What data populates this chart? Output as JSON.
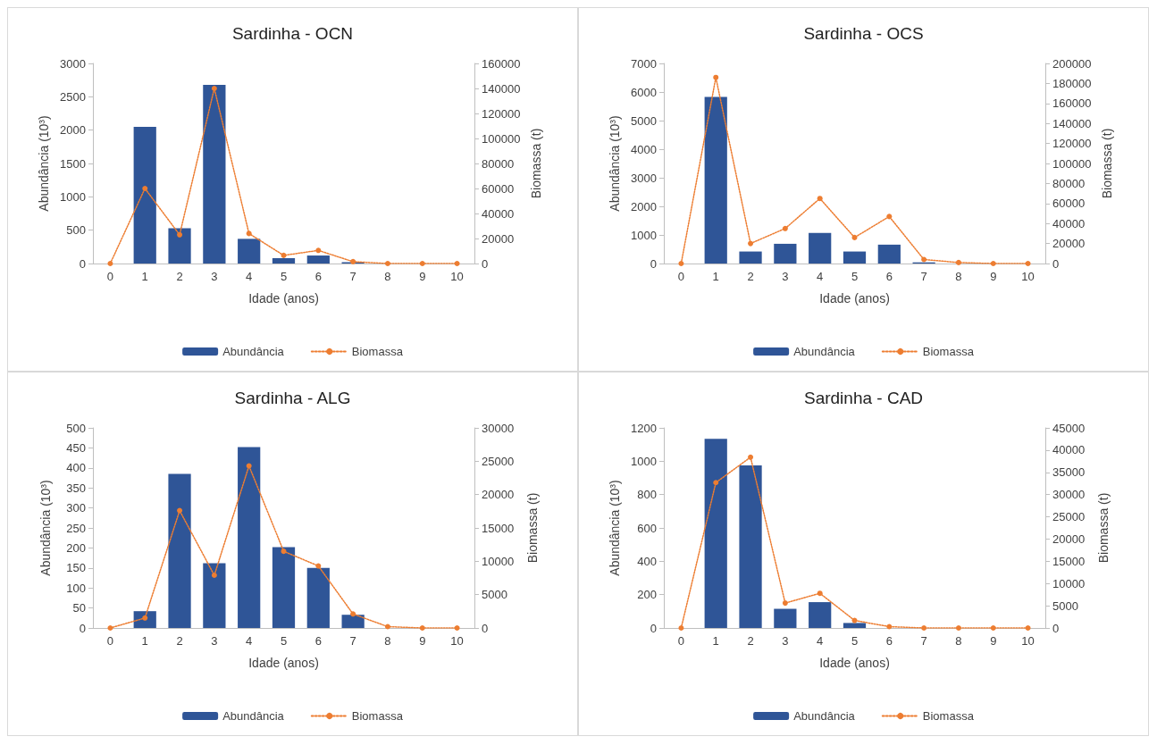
{
  "chart_data": [
    {
      "type": "bar",
      "title": "Sardinha - OCN",
      "xlabel": "Idade (anos)",
      "ylabel": "Abundância (10³)",
      "y2label": "Biomassa (t)",
      "categories": [
        "0",
        "1",
        "2",
        "3",
        "4",
        "5",
        "6",
        "7",
        "8",
        "9",
        "10"
      ],
      "series": [
        {
          "name": "Abundância",
          "color": "#2f5597",
          "values": [
            0,
            2050,
            530,
            2680,
            370,
            80,
            120,
            20,
            0,
            0,
            0
          ]
        },
        {
          "name": "Biomassa",
          "type": "line",
          "axis": "y2",
          "color": "#ed7d31",
          "values": [
            0,
            60000,
            23000,
            140000,
            24000,
            6500,
            10500,
            1500,
            0,
            0,
            0
          ]
        }
      ],
      "ylim": [
        0,
        3000
      ],
      "yticks": [
        0,
        500,
        1000,
        1500,
        2000,
        2500,
        3000
      ],
      "y2lim": [
        0,
        160000
      ],
      "y2ticks": [
        0,
        20000,
        40000,
        60000,
        80000,
        100000,
        120000,
        140000,
        160000
      ],
      "legend": "bottom",
      "marker": "circle",
      "line_style": "dotted"
    },
    {
      "type": "bar",
      "title": "Sardinha - OCS",
      "xlabel": "Idade (anos)",
      "ylabel": "Abundância (10³)",
      "y2label": "Biomassa (t)",
      "categories": [
        "0",
        "1",
        "2",
        "3",
        "4",
        "5",
        "6",
        "7",
        "8",
        "9",
        "10"
      ],
      "series": [
        {
          "name": "Abundância",
          "color": "#2f5597",
          "values": [
            0,
            5830,
            420,
            690,
            1070,
            420,
            660,
            40,
            0,
            0,
            0
          ]
        },
        {
          "name": "Biomassa",
          "type": "line",
          "axis": "y2",
          "color": "#ed7d31",
          "values": [
            0,
            186000,
            20000,
            35000,
            65000,
            26000,
            47000,
            4000,
            1000,
            0,
            0
          ]
        }
      ],
      "ylim": [
        0,
        7000
      ],
      "yticks": [
        0,
        1000,
        2000,
        3000,
        4000,
        5000,
        6000,
        7000
      ],
      "y2lim": [
        0,
        200000
      ],
      "y2ticks": [
        0,
        20000,
        40000,
        60000,
        80000,
        100000,
        120000,
        140000,
        160000,
        180000,
        200000
      ],
      "legend": "bottom",
      "marker": "circle",
      "line_style": "dotted"
    },
    {
      "type": "bar",
      "title": "Sardinha - ALG",
      "xlabel": "Idade (anos)",
      "ylabel": "Abundância (10³)",
      "y2label": "Biomassa (t)",
      "categories": [
        "0",
        "1",
        "2",
        "3",
        "4",
        "5",
        "6",
        "7",
        "8",
        "9",
        "10"
      ],
      "series": [
        {
          "name": "Abundância",
          "color": "#2f5597",
          "values": [
            0,
            42,
            385,
            162,
            452,
            202,
            150,
            33,
            0,
            0,
            0
          ]
        },
        {
          "name": "Biomassa",
          "type": "line",
          "axis": "y2",
          "color": "#ed7d31",
          "values": [
            0,
            1500,
            17600,
            7900,
            24300,
            11500,
            9300,
            2100,
            200,
            0,
            0
          ]
        }
      ],
      "ylim": [
        0,
        500
      ],
      "yticks": [
        0,
        50,
        100,
        150,
        200,
        250,
        300,
        350,
        400,
        450,
        500
      ],
      "y2lim": [
        0,
        30000
      ],
      "y2ticks": [
        0,
        5000,
        10000,
        15000,
        20000,
        25000,
        30000
      ],
      "legend": "bottom",
      "marker": "circle",
      "line_style": "dotted"
    },
    {
      "type": "bar",
      "title": "Sardinha - CAD",
      "xlabel": "Idade (anos)",
      "ylabel": "Abundância (10³)",
      "y2label": "Biomassa (t)",
      "categories": [
        "0",
        "1",
        "2",
        "3",
        "4",
        "5",
        "6",
        "7",
        "8",
        "9",
        "10"
      ],
      "series": [
        {
          "name": "Abundância",
          "color": "#2f5597",
          "values": [
            0,
            1135,
            975,
            115,
            155,
            30,
            0,
            0,
            0,
            0,
            0
          ]
        },
        {
          "name": "Biomassa",
          "type": "line",
          "axis": "y2",
          "color": "#ed7d31",
          "values": [
            0,
            32700,
            38400,
            5600,
            7800,
            1700,
            300,
            0,
            0,
            0,
            0
          ]
        }
      ],
      "ylim": [
        0,
        1200
      ],
      "yticks": [
        0,
        200,
        400,
        600,
        800,
        1000,
        1200
      ],
      "y2lim": [
        0,
        45000
      ],
      "y2ticks": [
        0,
        5000,
        10000,
        15000,
        20000,
        25000,
        30000,
        35000,
        40000,
        45000
      ],
      "legend": "bottom",
      "marker": "circle",
      "line_style": "dotted"
    }
  ]
}
